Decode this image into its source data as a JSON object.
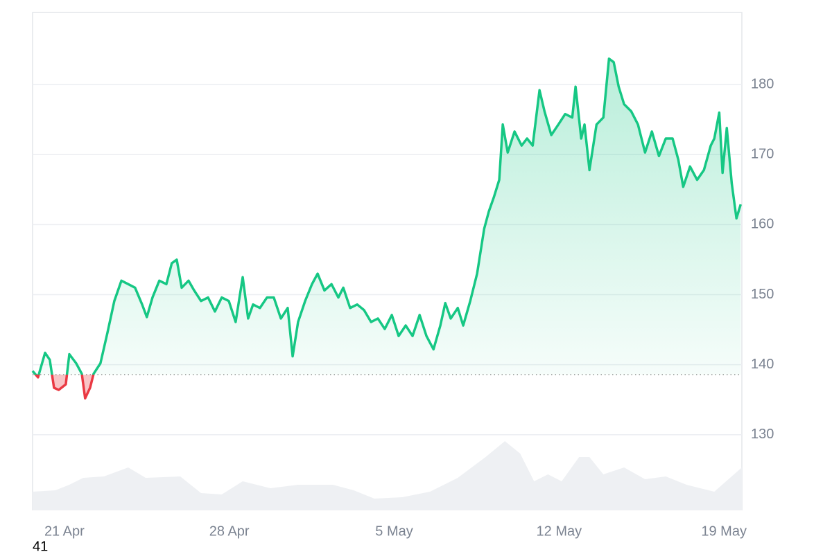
{
  "chart_data": {
    "type": "line",
    "ylim": [
      119.2,
      190.3
    ],
    "yticks": [
      130,
      140,
      150,
      160,
      170,
      180
    ],
    "xlim": [
      -1.35,
      28.76
    ],
    "xticks": [
      {
        "value": 0,
        "label": "21 Apr"
      },
      {
        "value": 7,
        "label": "28 Apr"
      },
      {
        "value": 14,
        "label": "5 May"
      },
      {
        "value": 21,
        "label": "12 May"
      },
      {
        "value": 28,
        "label": "19 May"
      }
    ],
    "grid": true,
    "reference": 138.6,
    "up_color": "#16c784",
    "down_color": "#ea3943",
    "series": [
      {
        "x": [
          -1.35,
          -1.12,
          -0.82,
          -0.62,
          -0.44,
          -0.24,
          0.06,
          0.21,
          0.5,
          0.74,
          0.88,
          1.09,
          1.24,
          1.53,
          1.83,
          2.12,
          2.42,
          2.71,
          3.0,
          3.3,
          3.5,
          3.74,
          4.03,
          4.33,
          4.56,
          4.77,
          4.98,
          5.27,
          5.51,
          5.8,
          6.1,
          6.39,
          6.68,
          6.98,
          7.27,
          7.57,
          7.8,
          8.01,
          8.3,
          8.6,
          8.89,
          9.19,
          9.48,
          9.69,
          9.92,
          10.22,
          10.51,
          10.75,
          11.04,
          11.34,
          11.63,
          11.84,
          12.13,
          12.43,
          12.72,
          13.02,
          13.31,
          13.6,
          13.9,
          14.19,
          14.49,
          14.78,
          15.08,
          15.37,
          15.67,
          15.96,
          16.17,
          16.4,
          16.7,
          16.93,
          17.23,
          17.52,
          17.82,
          18.02,
          18.23,
          18.46,
          18.61,
          18.82,
          19.11,
          19.41,
          19.64,
          19.88,
          20.17,
          20.38,
          20.67,
          20.97,
          21.26,
          21.56,
          21.7,
          21.94,
          22.08,
          22.29,
          22.59,
          22.88,
          23.12,
          23.32,
          23.53,
          23.76,
          24.06,
          24.35,
          24.65,
          24.94,
          25.24,
          25.53,
          25.82,
          26.06,
          26.27,
          26.56,
          26.86,
          27.15,
          27.44,
          27.59,
          27.8,
          27.94,
          28.12,
          28.33,
          28.53,
          28.71
        ],
        "values": [
          139.1,
          138.2,
          141.7,
          140.7,
          136.7,
          136.4,
          137.2,
          141.5,
          140.2,
          138.7,
          135.2,
          136.7,
          138.7,
          140.2,
          144.6,
          149.1,
          152.0,
          151.5,
          151.0,
          148.6,
          146.8,
          149.6,
          152.0,
          151.5,
          154.5,
          155.0,
          151.0,
          152.0,
          150.6,
          149.1,
          149.6,
          147.6,
          149.6,
          149.1,
          146.1,
          152.5,
          146.6,
          148.6,
          148.1,
          149.6,
          149.6,
          146.6,
          148.1,
          141.2,
          146.1,
          149.1,
          151.5,
          153.0,
          150.6,
          151.5,
          149.6,
          151.0,
          148.1,
          148.6,
          147.8,
          146.1,
          146.6,
          145.1,
          147.1,
          144.1,
          145.6,
          144.1,
          147.1,
          144.1,
          142.2,
          145.6,
          148.8,
          146.6,
          148.1,
          145.6,
          149.1,
          153.0,
          159.4,
          161.9,
          163.9,
          166.4,
          174.3,
          170.3,
          173.3,
          171.3,
          172.3,
          171.3,
          179.2,
          176.2,
          172.8,
          174.3,
          175.8,
          175.3,
          179.7,
          172.3,
          174.3,
          167.8,
          174.3,
          175.3,
          183.7,
          183.2,
          179.7,
          177.2,
          176.2,
          174.3,
          170.3,
          173.3,
          169.8,
          172.3,
          172.3,
          169.3,
          165.4,
          168.3,
          166.4,
          167.8,
          171.3,
          172.3,
          176.0,
          167.4,
          173.8,
          165.9,
          160.9,
          162.9
        ]
      }
    ],
    "volume": {
      "color": "#eef0f3",
      "x": [
        -1.35,
        -0.38,
        0.21,
        0.8,
        1.68,
        2.71,
        3.45,
        4.92,
        5.8,
        6.68,
        7.57,
        8.75,
        9.92,
        11.4,
        12.28,
        13.16,
        14.34,
        15.52,
        16.7,
        17.88,
        18.7,
        19.35,
        19.94,
        20.53,
        21.11,
        21.85,
        22.29,
        22.88,
        23.76,
        24.65,
        25.53,
        26.41,
        27.59,
        28.76
      ],
      "values": [
        27,
        29,
        37,
        47,
        49,
        62,
        47,
        49,
        25,
        23,
        42,
        32,
        37,
        37,
        29,
        17,
        19,
        27,
        47,
        77,
        100,
        82,
        42,
        52,
        42,
        77,
        77,
        52,
        62,
        45,
        49,
        37,
        27,
        62
      ]
    },
    "note": "41"
  }
}
